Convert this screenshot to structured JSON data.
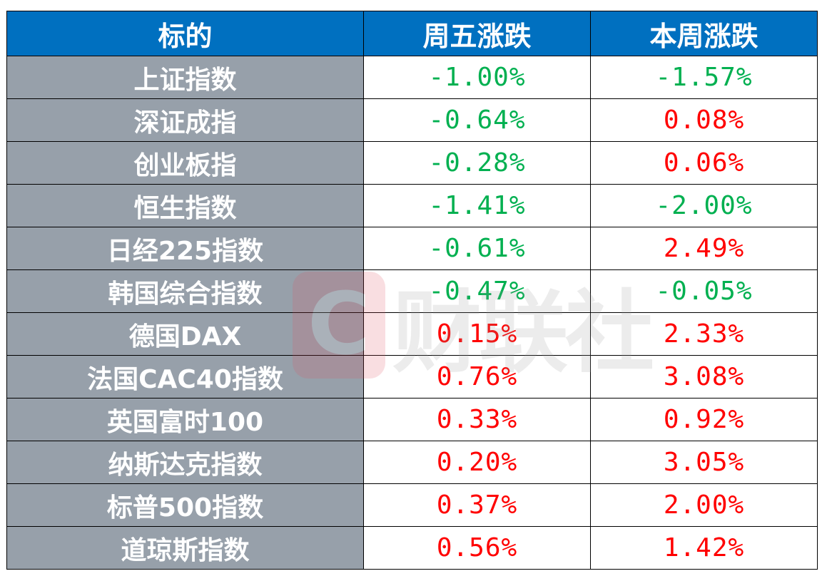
{
  "headers": [
    "标的",
    "周五涨跌",
    "本周涨跌"
  ],
  "colors": {
    "header_bg": "#0070c0",
    "name_bg": "#97a0aa",
    "up": "#ff0000",
    "down": "#00b050"
  },
  "watermark": {
    "logo_letter": "C",
    "text": "财联社"
  },
  "rows": [
    {
      "name": "上证指数",
      "friday": "-1.00%",
      "week": "-1.57%"
    },
    {
      "name": "深证成指",
      "friday": "-0.64%",
      "week": "0.08%"
    },
    {
      "name": "创业板指",
      "friday": "-0.28%",
      "week": "0.06%"
    },
    {
      "name": "恒生指数",
      "friday": "-1.41%",
      "week": "-2.00%"
    },
    {
      "name": "日经225指数",
      "friday": "-0.61%",
      "week": "2.49%"
    },
    {
      "name": "韩国综合指数",
      "friday": "-0.47%",
      "week": "-0.05%"
    },
    {
      "name": "德国DAX",
      "friday": "0.15%",
      "week": "2.33%"
    },
    {
      "name": "法国CAC40指数",
      "friday": "0.76%",
      "week": "3.08%"
    },
    {
      "name": "英国富时100",
      "friday": "0.33%",
      "week": "0.92%"
    },
    {
      "name": "纳斯达克指数",
      "friday": "0.20%",
      "week": "3.05%"
    },
    {
      "name": "标普500指数",
      "friday": "0.37%",
      "week": "2.00%"
    },
    {
      "name": "道琼斯指数",
      "friday": "0.56%",
      "week": "1.42%"
    }
  ]
}
